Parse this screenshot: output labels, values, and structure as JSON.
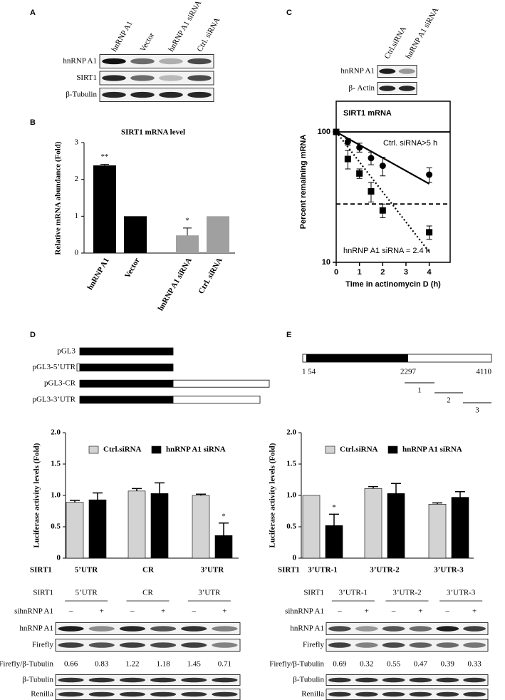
{
  "panel_labels": [
    "A",
    "B",
    "C",
    "D",
    "E"
  ],
  "blot_a": {
    "lanes": [
      "hnRNP A1",
      "Vector",
      "hnRNP A1 siRNA",
      "Ctrl. siRNA"
    ],
    "rows": [
      "hnRNP A1",
      "SIRT1",
      "β-Tubulin"
    ]
  },
  "blot_c": {
    "lanes": [
      "Ctrl.siRNA",
      "hnRNP A1 siRNA"
    ],
    "rows": [
      "hnRNP A1",
      "β- Actin"
    ]
  },
  "constructs_d": [
    "pGL3",
    "pGL3-5’UTR",
    "pGL3-CR",
    "pGL3-3’UTR"
  ],
  "schematic_e": {
    "positions": [
      "1 54",
      "2297",
      "4110"
    ],
    "segments": [
      "1",
      "2",
      "3"
    ]
  },
  "chart_data": [
    {
      "type": "bar",
      "title": "SIRT1 mRNA level",
      "y_label": "Relative mRNA abundance (Fold)",
      "categories": [
        "hnRNP A1",
        "Vector",
        "hnRNP A1 siRNA",
        "Ctrl. siRNA"
      ],
      "values": [
        2.38,
        1,
        0.48,
        1
      ],
      "errors": [
        0.03,
        0,
        0.2,
        0
      ],
      "colors": [
        "#000000",
        "#000000",
        "#a0a0a0",
        "#a0a0a0"
      ],
      "annotations": [
        {
          "category": "hnRNP A1",
          "text": "**"
        },
        {
          "category": "hnRNP A1 siRNA",
          "text": "*"
        }
      ],
      "ylim": [
        0,
        3
      ],
      "yticks": [
        0,
        1,
        2,
        3
      ]
    },
    {
      "type": "scatter",
      "title": "SIRT1 mRNA",
      "x_label": "Time in actinomycin D (h)",
      "y_label": "Percent remaining mRNA",
      "log_y": true,
      "xlim": [
        0,
        4.9
      ],
      "ylim": [
        10,
        172
      ],
      "xticks": [
        0,
        1,
        2,
        3,
        4
      ],
      "yticks": [
        10,
        100
      ],
      "series": [
        {
          "marker": "circle",
          "color": "#000000",
          "x": [
            0,
            0.5,
            1,
            1.5,
            2,
            4
          ],
          "values": [
            100,
            84,
            76,
            63,
            55,
            47
          ],
          "errors": [
            0,
            5,
            6,
            7,
            9,
            6
          ]
        },
        {
          "marker": "square",
          "color": "#000000",
          "x": [
            0,
            0.5,
            1,
            1.5,
            2,
            4
          ],
          "values": [
            100,
            62,
            48,
            35,
            25,
            17
          ],
          "errors": [
            0,
            10,
            4,
            6,
            3,
            2
          ]
        }
      ],
      "fits": [
        {
          "x": [
            0,
            4
          ],
          "values": [
            100,
            40
          ],
          "style": "solid"
        },
        {
          "x": [
            0,
            4
          ],
          "values": [
            100,
            12
          ],
          "style": "dotted"
        }
      ],
      "reference_lines": [
        {
          "value": 100,
          "style": "solid"
        },
        {
          "value": 28,
          "style": "dashed"
        }
      ],
      "annotations": [
        "Ctrl. siRNA>5 h",
        "hnRNP A1 siRNA = 2.4 h"
      ]
    },
    {
      "type": "grouped_bar",
      "y_label": "Luciferase activity levels (Fold)",
      "row_label": "SIRT1",
      "categories": [
        "5’UTR",
        "CR",
        "3’UTR"
      ],
      "series": [
        {
          "name": "Ctrl.siRNA",
          "color": "#d3d3d3",
          "values": [
            0.89,
            1.07,
            1.0
          ],
          "errors": [
            0.03,
            0.04,
            0.02
          ]
        },
        {
          "name": "hnRNP A1 siRNA",
          "color": "#000000",
          "values": [
            0.93,
            1.03,
            0.36
          ],
          "errors": [
            0.11,
            0.17,
            0.2
          ]
        }
      ],
      "annotations": [
        {
          "category": "3’UTR",
          "series": "hnRNP A1 siRNA",
          "text": "*"
        }
      ],
      "ylim": [
        0,
        2
      ],
      "yticks": [
        0,
        0.5,
        {
          "value": 1,
          "label": "1.0"
        },
        1.5,
        {
          "value": 2,
          "label": "2.0"
        }
      ]
    },
    {
      "type": "grouped_bar",
      "y_label": "Luciferase activity levels (Fold)",
      "row_label": "SIRT1",
      "categories": [
        "3’UTR-1",
        "3’UTR-2",
        "3’UTR-3"
      ],
      "series": [
        {
          "name": "Ctrl.siRNA",
          "color": "#d3d3d3",
          "values": [
            1.0,
            1.11,
            0.86
          ],
          "errors": [
            0,
            0.03,
            0.02
          ]
        },
        {
          "name": "hnRNP A1 siRNA",
          "color": "#000000",
          "values": [
            0.52,
            1.03,
            0.97
          ],
          "errors": [
            0.18,
            0.16,
            0.09
          ]
        }
      ],
      "annotations": [
        {
          "category": "3’UTR-1",
          "series": "hnRNP A1 siRNA",
          "text": "*"
        }
      ],
      "ylim": [
        0,
        2
      ],
      "yticks": [
        0,
        0.5,
        {
          "value": 1,
          "label": "1.0"
        },
        1.5,
        {
          "value": 2,
          "label": "2.0"
        }
      ]
    }
  ],
  "blot_d": {
    "header_label": "SIRT1",
    "groups": [
      "5’UTR",
      "CR",
      "3’UTR"
    ],
    "treatment_label": "sihnRNP A1",
    "signs": [
      "–",
      "+"
    ],
    "rows": [
      "hnRNP A1",
      "Firefly"
    ],
    "ratio_label": "Firefly/β-Tubulin",
    "ratios": [
      0.66,
      0.83,
      1.22,
      1.18,
      1.45,
      0.71
    ],
    "rows_after": [
      "β-Tubulin",
      "Renilla"
    ]
  },
  "blot_e": {
    "header_label": "SIRT1",
    "groups": [
      "3’UTR-1",
      "3’UTR-2",
      "3’UTR-3"
    ],
    "treatment_label": "sihnRNP A1",
    "signs": [
      "–",
      "+"
    ],
    "rows": [
      "hnRNP A1",
      "Firefly"
    ],
    "ratio_label": "Firefly/β-Tubulin",
    "ratios": [
      0.69,
      0.32,
      0.55,
      0.47,
      0.39,
      0.33
    ],
    "rows_after": [
      "β-Tubulin",
      "Renilla"
    ]
  }
}
